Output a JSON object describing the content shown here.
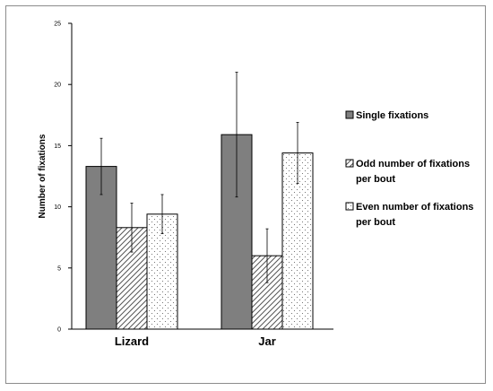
{
  "chart_data": {
    "type": "bar",
    "title": "",
    "xlabel": "",
    "ylabel": "Number of fixations",
    "ylim": [
      0,
      25
    ],
    "yticks": [
      "0",
      "5",
      "10",
      "15",
      "20",
      "25"
    ],
    "categories": [
      "Lizard",
      "Jar"
    ],
    "series": [
      {
        "name": "Single fixations",
        "values": [
          13.3,
          15.9
        ],
        "error": [
          2.3,
          5.1
        ],
        "fill": "#7f7f7f",
        "pattern": "solid"
      },
      {
        "name": "Odd number of fixations per bout",
        "legend_lines": [
          "Odd number of fixations",
          "per bout"
        ],
        "values": [
          8.3,
          6.0
        ],
        "error": [
          2.0,
          2.2
        ],
        "fill": "#ffffff",
        "pattern": "diagonal-hatch"
      },
      {
        "name": "Even number of fixations per bout",
        "legend_lines": [
          "Even number of fixations",
          "per bout"
        ],
        "values": [
          9.4,
          14.4
        ],
        "error": [
          1.6,
          2.5
        ],
        "fill": "#ffffff",
        "pattern": "dots"
      }
    ],
    "grid": false,
    "legend_position": "right"
  }
}
